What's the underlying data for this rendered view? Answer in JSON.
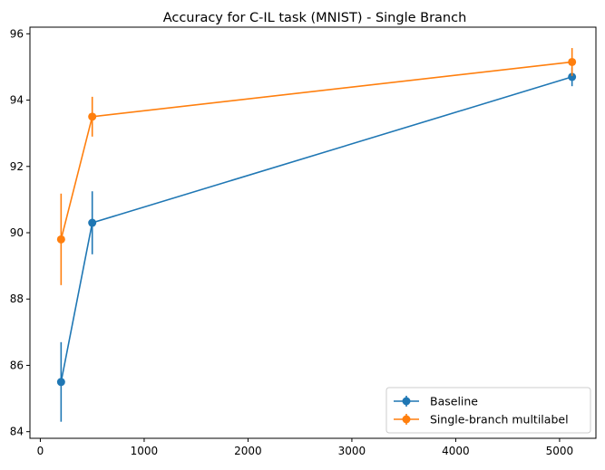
{
  "chart_data": {
    "type": "line",
    "title": "Accuracy for C-IL task (MNIST) - Single Branch",
    "xlabel": "",
    "ylabel": "",
    "x": [
      200,
      500,
      5120
    ],
    "xlim": [
      -100,
      5350
    ],
    "ylim": [
      83.8,
      96.2
    ],
    "xticks": [
      0,
      1000,
      2000,
      3000,
      4000,
      5000
    ],
    "yticks": [
      84,
      86,
      88,
      90,
      92,
      94,
      96
    ],
    "grid": false,
    "legend_position": "lower-right",
    "series": [
      {
        "name": "Baseline",
        "color": "#1f77b4",
        "values": [
          85.5,
          90.3,
          94.7
        ],
        "errors": [
          1.2,
          0.95,
          0.28
        ]
      },
      {
        "name": "Single-branch multilabel",
        "color": "#ff7f0e",
        "values": [
          89.8,
          93.5,
          95.15
        ],
        "errors": [
          1.38,
          0.6,
          0.42
        ]
      }
    ]
  }
}
